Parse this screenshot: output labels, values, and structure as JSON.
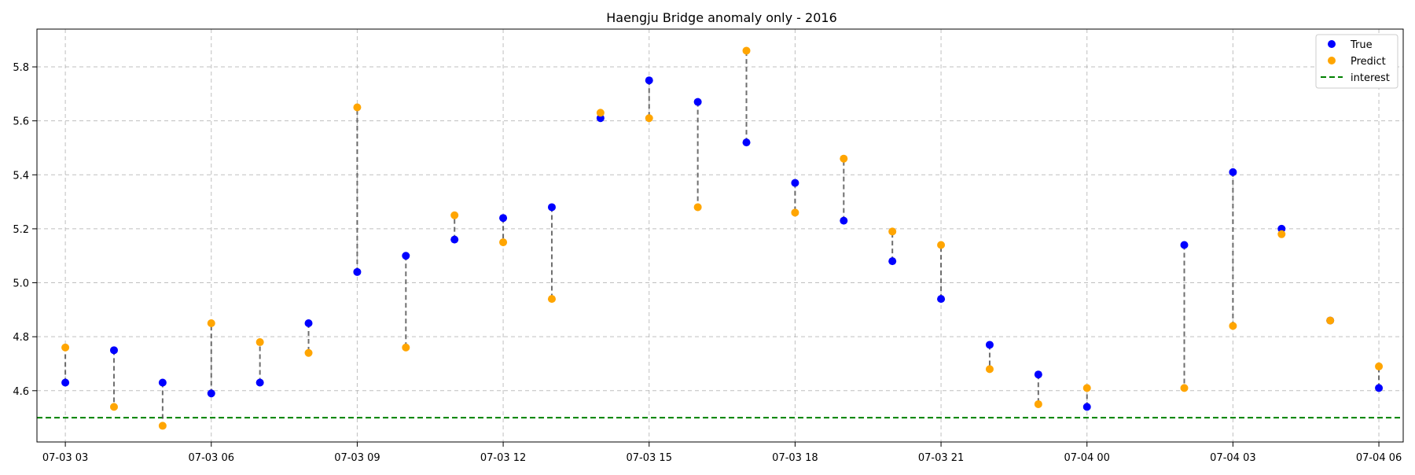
{
  "chart_data": {
    "type": "scatter",
    "title": "Haengju Bridge anomaly only - 2016",
    "xlabel": "",
    "ylabel": "",
    "x_start": "2016-07-03 02:00",
    "x_end": "2016-07-04 06:30",
    "xlim": [
      "2016-07-03 02:25",
      "2016-07-04 06:30"
    ],
    "ylim": [
      4.41,
      5.94
    ],
    "x_ticks": [
      {
        "t": "2016-07-03 03:00",
        "label": "07-03 03"
      },
      {
        "t": "2016-07-03 06:00",
        "label": "07-03 06"
      },
      {
        "t": "2016-07-03 09:00",
        "label": "07-03 09"
      },
      {
        "t": "2016-07-03 12:00",
        "label": "07-03 12"
      },
      {
        "t": "2016-07-03 15:00",
        "label": "07-03 15"
      },
      {
        "t": "2016-07-03 18:00",
        "label": "07-03 18"
      },
      {
        "t": "2016-07-03 21:00",
        "label": "07-03 21"
      },
      {
        "t": "2016-07-04 00:00",
        "label": "07-04 00"
      },
      {
        "t": "2016-07-04 03:00",
        "label": "07-04 03"
      },
      {
        "t": "2016-07-04 06:00",
        "label": "07-04 06"
      }
    ],
    "y_ticks": [
      4.6,
      4.8,
      5.0,
      5.2,
      5.4,
      5.6,
      5.8
    ],
    "grid": true,
    "legend_position": "top-right",
    "series": [
      {
        "name": "True",
        "color": "#0000ff",
        "points": [
          {
            "t": "2016-07-03 03:00",
            "y": 4.63
          },
          {
            "t": "2016-07-03 04:00",
            "y": 4.75
          },
          {
            "t": "2016-07-03 05:00",
            "y": 4.63
          },
          {
            "t": "2016-07-03 06:00",
            "y": 4.59
          },
          {
            "t": "2016-07-03 07:00",
            "y": 4.63
          },
          {
            "t": "2016-07-03 08:00",
            "y": 4.85
          },
          {
            "t": "2016-07-03 09:00",
            "y": 5.04
          },
          {
            "t": "2016-07-03 10:00",
            "y": 5.1
          },
          {
            "t": "2016-07-03 11:00",
            "y": 5.16
          },
          {
            "t": "2016-07-03 12:00",
            "y": 5.24
          },
          {
            "t": "2016-07-03 13:00",
            "y": 5.28
          },
          {
            "t": "2016-07-03 14:00",
            "y": 5.61
          },
          {
            "t": "2016-07-03 15:00",
            "y": 5.75
          },
          {
            "t": "2016-07-03 16:00",
            "y": 5.67
          },
          {
            "t": "2016-07-03 17:00",
            "y": 5.52
          },
          {
            "t": "2016-07-03 18:00",
            "y": 5.37
          },
          {
            "t": "2016-07-03 19:00",
            "y": 5.23
          },
          {
            "t": "2016-07-03 20:00",
            "y": 5.08
          },
          {
            "t": "2016-07-03 21:00",
            "y": 4.94
          },
          {
            "t": "2016-07-03 22:00",
            "y": 4.77
          },
          {
            "t": "2016-07-03 23:00",
            "y": 4.66
          },
          {
            "t": "2016-07-04 00:00",
            "y": 4.54
          },
          {
            "t": "2016-07-04 02:00",
            "y": 5.14
          },
          {
            "t": "2016-07-04 03:00",
            "y": 5.41
          },
          {
            "t": "2016-07-04 04:00",
            "y": 5.2
          },
          {
            "t": "2016-07-04 05:00",
            "y": 4.86
          },
          {
            "t": "2016-07-04 06:00",
            "y": 4.61
          }
        ]
      },
      {
        "name": "Predict",
        "color": "#ffa500",
        "points": [
          {
            "t": "2016-07-03 03:00",
            "y": 4.76
          },
          {
            "t": "2016-07-03 04:00",
            "y": 4.54
          },
          {
            "t": "2016-07-03 05:00",
            "y": 4.47
          },
          {
            "t": "2016-07-03 06:00",
            "y": 4.85
          },
          {
            "t": "2016-07-03 07:00",
            "y": 4.78
          },
          {
            "t": "2016-07-03 08:00",
            "y": 4.74
          },
          {
            "t": "2016-07-03 09:00",
            "y": 5.65
          },
          {
            "t": "2016-07-03 10:00",
            "y": 4.76
          },
          {
            "t": "2016-07-03 11:00",
            "y": 5.25
          },
          {
            "t": "2016-07-03 12:00",
            "y": 5.15
          },
          {
            "t": "2016-07-03 13:00",
            "y": 4.94
          },
          {
            "t": "2016-07-03 14:00",
            "y": 5.63
          },
          {
            "t": "2016-07-03 15:00",
            "y": 5.61
          },
          {
            "t": "2016-07-03 16:00",
            "y": 5.28
          },
          {
            "t": "2016-07-03 17:00",
            "y": 5.86
          },
          {
            "t": "2016-07-03 18:00",
            "y": 5.26
          },
          {
            "t": "2016-07-03 19:00",
            "y": 5.46
          },
          {
            "t": "2016-07-03 20:00",
            "y": 5.19
          },
          {
            "t": "2016-07-03 21:00",
            "y": 5.14
          },
          {
            "t": "2016-07-03 22:00",
            "y": 4.68
          },
          {
            "t": "2016-07-03 23:00",
            "y": 4.55
          },
          {
            "t": "2016-07-04 00:00",
            "y": 4.61
          },
          {
            "t": "2016-07-04 02:00",
            "y": 4.61
          },
          {
            "t": "2016-07-04 03:00",
            "y": 4.84
          },
          {
            "t": "2016-07-04 04:00",
            "y": 5.18
          },
          {
            "t": "2016-07-04 05:00",
            "y": 4.86
          },
          {
            "t": "2016-07-04 06:00",
            "y": 4.69
          }
        ]
      }
    ],
    "reference_line": {
      "name": "interest",
      "y": 4.5,
      "color": "#008000",
      "style": "dashed"
    }
  }
}
